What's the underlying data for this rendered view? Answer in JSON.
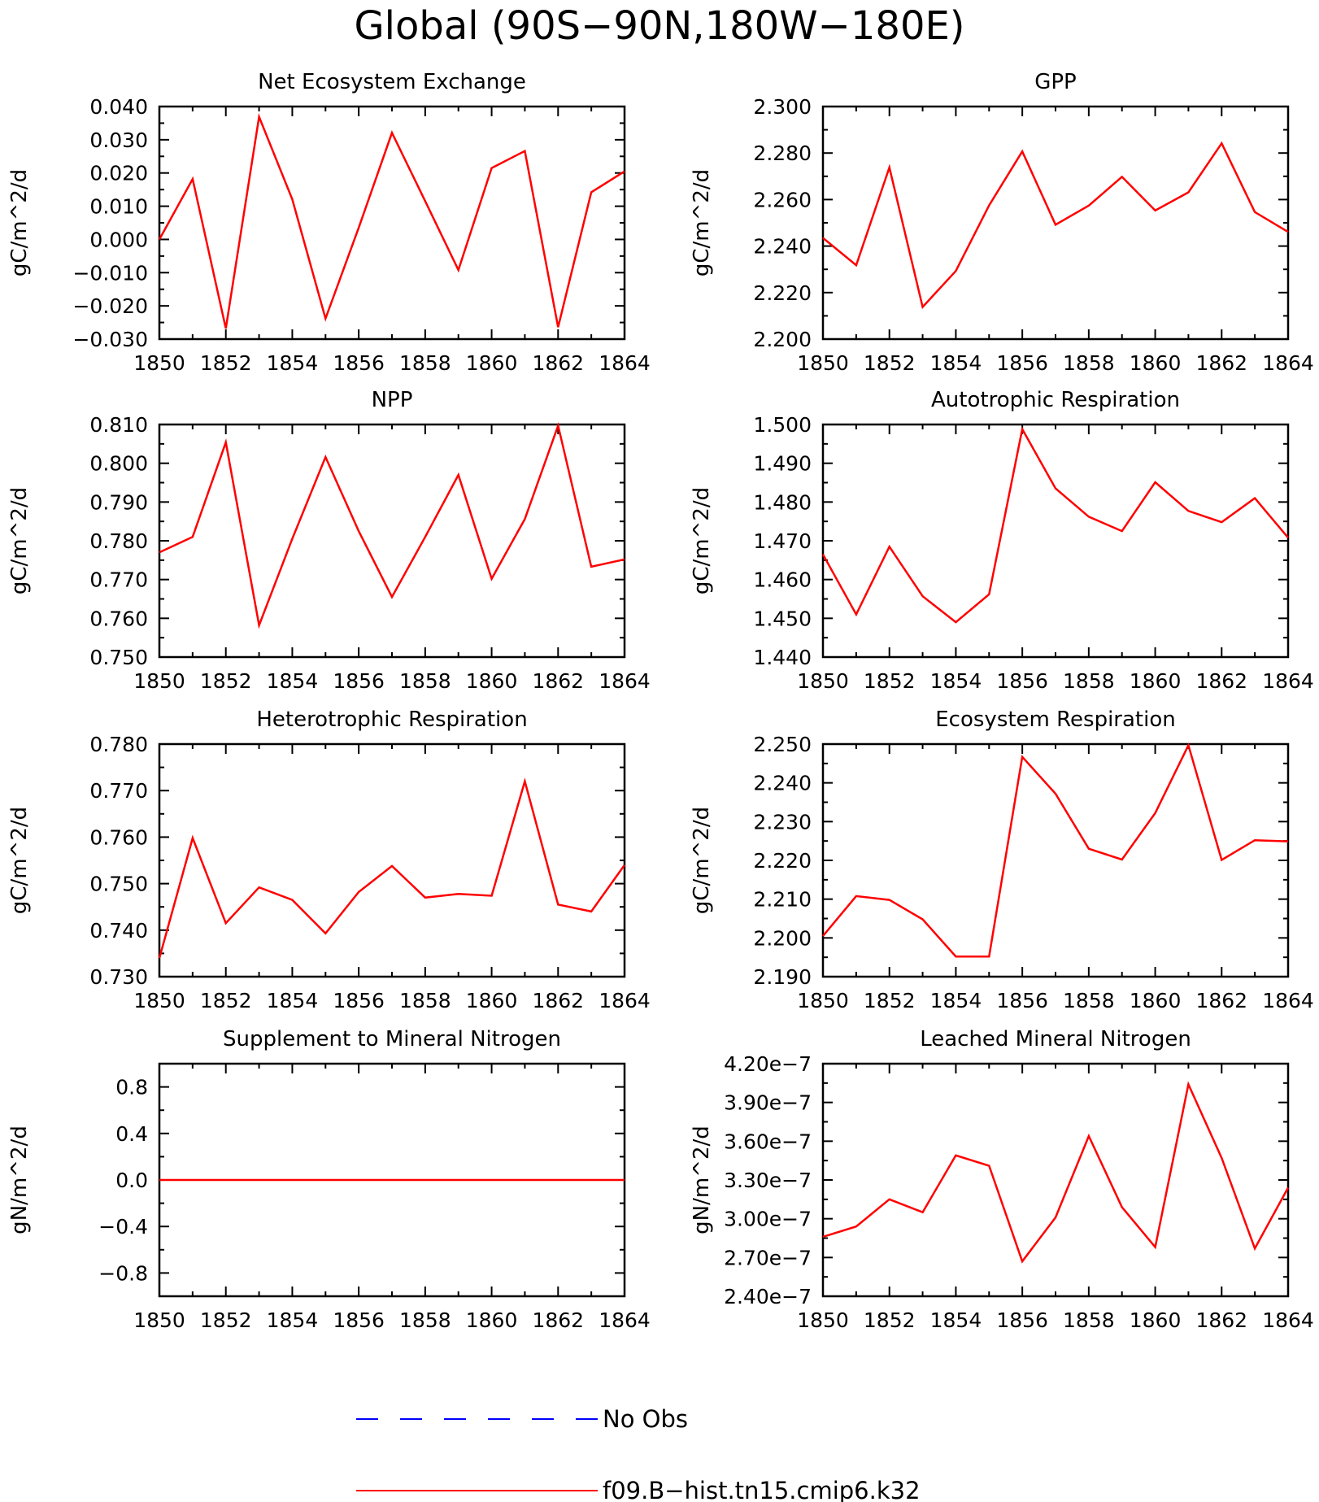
{
  "figure_title": "Global (90S−90N,180W−180E)",
  "legend": [
    {
      "label": "No Obs",
      "color": "#0000ff",
      "dash": true
    },
    {
      "label": "f09.B−hist.tn15.cmip6.k32",
      "color": "#ff0000",
      "dash": false
    }
  ],
  "chart_data": [
    {
      "type": "line",
      "title": "Net Ecosystem Exchange",
      "ylabel": "gC/m^2/d",
      "xlim": [
        1850,
        1864
      ],
      "ylim": [
        -0.03,
        0.04
      ],
      "xticks": [
        "1850",
        "1852",
        "1854",
        "1856",
        "1858",
        "1860",
        "1862",
        "1864"
      ],
      "yticks": [
        {
          "v": -0.03,
          "t": "−0.030"
        },
        {
          "v": -0.02,
          "t": "−0.020"
        },
        {
          "v": -0.01,
          "t": "−0.010"
        },
        {
          "v": 0,
          "t": "0.000"
        },
        {
          "v": 0.01,
          "t": "0.010"
        },
        {
          "v": 0.02,
          "t": "0.020"
        },
        {
          "v": 0.03,
          "t": "0.030"
        },
        {
          "v": 0.04,
          "t": "0.040"
        }
      ],
      "x": [
        1850,
        1851,
        1852,
        1853,
        1854,
        1855,
        1856,
        1857,
        1858,
        1859,
        1860,
        1861,
        1862,
        1863,
        1864
      ],
      "series": [
        {
          "name": "f09.B−hist.tn15.cmip6.k32",
          "color": "#ff0000",
          "values": [
            0.0,
            0.0182,
            -0.0268,
            0.0369,
            0.0121,
            -0.0238,
            0.0035,
            0.0321,
            0.0115,
            -0.0092,
            0.0215,
            0.0266,
            -0.0264,
            0.0142,
            0.0205
          ]
        }
      ]
    },
    {
      "type": "line",
      "title": "GPP",
      "ylabel": "gC/m^2/d",
      "xlim": [
        1850,
        1864
      ],
      "ylim": [
        2.2,
        2.3
      ],
      "xticks": [
        "1850",
        "1852",
        "1854",
        "1856",
        "1858",
        "1860",
        "1862",
        "1864"
      ],
      "yticks": [
        {
          "v": 2.2,
          "t": "2.200"
        },
        {
          "v": 2.22,
          "t": "2.220"
        },
        {
          "v": 2.24,
          "t": "2.240"
        },
        {
          "v": 2.26,
          "t": "2.260"
        },
        {
          "v": 2.28,
          "t": "2.280"
        },
        {
          "v": 2.3,
          "t": "2.300"
        }
      ],
      "x": [
        1850,
        1851,
        1852,
        1853,
        1854,
        1855,
        1856,
        1857,
        1858,
        1859,
        1860,
        1861,
        1862,
        1863,
        1864
      ],
      "series": [
        {
          "name": "f09.B−hist.tn15.cmip6.k32",
          "color": "#ff0000",
          "values": [
            2.2435,
            2.2318,
            2.2738,
            2.2138,
            2.2293,
            2.2575,
            2.2807,
            2.2492,
            2.2574,
            2.2698,
            2.2553,
            2.2631,
            2.2842,
            2.2546,
            2.2461
          ]
        }
      ]
    },
    {
      "type": "line",
      "title": "NPP",
      "ylabel": "gC/m^2/d",
      "xlim": [
        1850,
        1864
      ],
      "ylim": [
        0.75,
        0.81
      ],
      "xticks": [
        "1850",
        "1852",
        "1854",
        "1856",
        "1858",
        "1860",
        "1862",
        "1864"
      ],
      "yticks": [
        {
          "v": 0.75,
          "t": "0.750"
        },
        {
          "v": 0.76,
          "t": "0.760"
        },
        {
          "v": 0.77,
          "t": "0.770"
        },
        {
          "v": 0.78,
          "t": "0.780"
        },
        {
          "v": 0.79,
          "t": "0.790"
        },
        {
          "v": 0.8,
          "t": "0.800"
        },
        {
          "v": 0.81,
          "t": "0.810"
        }
      ],
      "x": [
        1850,
        1851,
        1852,
        1853,
        1854,
        1855,
        1856,
        1857,
        1858,
        1859,
        1860,
        1861,
        1862,
        1863,
        1864
      ],
      "series": [
        {
          "name": "f09.B−hist.tn15.cmip6.k32",
          "color": "#ff0000",
          "values": [
            0.777,
            0.781,
            0.8054,
            0.7582,
            0.7805,
            0.8016,
            0.7825,
            0.7655,
            0.781,
            0.797,
            0.7702,
            0.7856,
            0.8097,
            0.7733,
            0.7752
          ]
        }
      ]
    },
    {
      "type": "line",
      "title": "Autotrophic Respiration",
      "ylabel": "gC/m^2/d",
      "xlim": [
        1850,
        1864
      ],
      "ylim": [
        1.44,
        1.5
      ],
      "xticks": [
        "1850",
        "1852",
        "1854",
        "1856",
        "1858",
        "1860",
        "1862",
        "1864"
      ],
      "yticks": [
        {
          "v": 1.44,
          "t": "1.440"
        },
        {
          "v": 1.45,
          "t": "1.450"
        },
        {
          "v": 1.46,
          "t": "1.460"
        },
        {
          "v": 1.47,
          "t": "1.470"
        },
        {
          "v": 1.48,
          "t": "1.480"
        },
        {
          "v": 1.49,
          "t": "1.490"
        },
        {
          "v": 1.5,
          "t": "1.500"
        }
      ],
      "x": [
        1850,
        1851,
        1852,
        1853,
        1854,
        1855,
        1856,
        1857,
        1858,
        1859,
        1860,
        1861,
        1862,
        1863,
        1864
      ],
      "series": [
        {
          "name": "f09.B−hist.tn15.cmip6.k32",
          "color": "#ff0000",
          "values": [
            1.4665,
            1.451,
            1.4685,
            1.4557,
            1.449,
            1.4562,
            1.4988,
            1.4835,
            1.4762,
            1.4725,
            1.4851,
            1.4777,
            1.4748,
            1.481,
            1.4708
          ]
        }
      ]
    },
    {
      "type": "line",
      "title": "Heterotrophic Respiration",
      "ylabel": "gC/m^2/d",
      "xlim": [
        1850,
        1864
      ],
      "ylim": [
        0.73,
        0.78
      ],
      "xticks": [
        "1850",
        "1852",
        "1854",
        "1856",
        "1858",
        "1860",
        "1862",
        "1864"
      ],
      "yticks": [
        {
          "v": 0.73,
          "t": "0.730"
        },
        {
          "v": 0.74,
          "t": "0.740"
        },
        {
          "v": 0.75,
          "t": "0.750"
        },
        {
          "v": 0.76,
          "t": "0.760"
        },
        {
          "v": 0.77,
          "t": "0.770"
        },
        {
          "v": 0.78,
          "t": "0.780"
        }
      ],
      "x": [
        1850,
        1851,
        1852,
        1853,
        1854,
        1855,
        1856,
        1857,
        1858,
        1859,
        1860,
        1861,
        1862,
        1863,
        1864
      ],
      "series": [
        {
          "name": "f09.B−hist.tn15.cmip6.k32",
          "color": "#ff0000",
          "values": [
            0.734,
            0.7598,
            0.7415,
            0.7492,
            0.7465,
            0.7393,
            0.7482,
            0.7538,
            0.747,
            0.7478,
            0.7474,
            0.772,
            0.7455,
            0.744,
            0.754
          ]
        }
      ]
    },
    {
      "type": "line",
      "title": "Ecosystem Respiration",
      "ylabel": "gC/m^2/d",
      "xlim": [
        1850,
        1864
      ],
      "ylim": [
        2.19,
        2.25
      ],
      "xticks": [
        "1850",
        "1852",
        "1854",
        "1856",
        "1858",
        "1860",
        "1862",
        "1864"
      ],
      "yticks": [
        {
          "v": 2.19,
          "t": "2.190"
        },
        {
          "v": 2.2,
          "t": "2.200"
        },
        {
          "v": 2.21,
          "t": "2.210"
        },
        {
          "v": 2.22,
          "t": "2.220"
        },
        {
          "v": 2.23,
          "t": "2.230"
        },
        {
          "v": 2.24,
          "t": "2.240"
        },
        {
          "v": 2.25,
          "t": "2.250"
        }
      ],
      "x": [
        1850,
        1851,
        1852,
        1853,
        1854,
        1855,
        1856,
        1857,
        1858,
        1859,
        1860,
        1861,
        1862,
        1863,
        1864
      ],
      "series": [
        {
          "name": "f09.B−hist.tn15.cmip6.k32",
          "color": "#ff0000",
          "values": [
            2.2005,
            2.2108,
            2.2098,
            2.2048,
            2.1952,
            2.1952,
            2.2467,
            2.2372,
            2.223,
            2.2202,
            2.2322,
            2.2497,
            2.2201,
            2.2252,
            2.2249
          ]
        }
      ]
    },
    {
      "type": "line",
      "title": "Supplement to Mineral Nitrogen",
      "ylabel": "gN/m^2/d",
      "xlim": [
        1850,
        1864
      ],
      "ylim": [
        -1.0,
        1.0
      ],
      "xticks": [
        "1850",
        "1852",
        "1854",
        "1856",
        "1858",
        "1860",
        "1862",
        "1864"
      ],
      "yticks": [
        {
          "v": -0.8,
          "t": "−0.8"
        },
        {
          "v": -0.4,
          "t": "−0.4"
        },
        {
          "v": 0,
          "t": "0.0"
        },
        {
          "v": 0.4,
          "t": "0.4"
        },
        {
          "v": 0.8,
          "t": "0.8"
        }
      ],
      "x": [
        1850,
        1851,
        1852,
        1853,
        1854,
        1855,
        1856,
        1857,
        1858,
        1859,
        1860,
        1861,
        1862,
        1863,
        1864
      ],
      "series": [
        {
          "name": "f09.B−hist.tn15.cmip6.k32",
          "color": "#ff0000",
          "values": [
            0,
            0,
            0,
            0,
            0,
            0,
            0,
            0,
            0,
            0,
            0,
            0,
            0,
            0,
            0
          ]
        }
      ]
    },
    {
      "type": "line",
      "title": "Leached Mineral Nitrogen",
      "ylabel": "gN/m^2/d",
      "xlim": [
        1850,
        1864
      ],
      "ylim": [
        2.4e-07,
        4.2e-07
      ],
      "xticks": [
        "1850",
        "1852",
        "1854",
        "1856",
        "1858",
        "1860",
        "1862",
        "1864"
      ],
      "yticks": [
        {
          "v": 2.4e-07,
          "t": "2.40e−7"
        },
        {
          "v": 2.7e-07,
          "t": "2.70e−7"
        },
        {
          "v": 3e-07,
          "t": "3.00e−7"
        },
        {
          "v": 3.3e-07,
          "t": "3.30e−7"
        },
        {
          "v": 3.6e-07,
          "t": "3.60e−7"
        },
        {
          "v": 3.9e-07,
          "t": "3.90e−7"
        },
        {
          "v": 4.2e-07,
          "t": "4.20e−7"
        }
      ],
      "x": [
        1850,
        1851,
        1852,
        1853,
        1854,
        1855,
        1856,
        1857,
        1858,
        1859,
        1860,
        1861,
        1862,
        1863,
        1864
      ],
      "series": [
        {
          "name": "f09.B−hist.tn15.cmip6.k32",
          "color": "#ff0000",
          "values": [
            2.86e-07,
            2.94e-07,
            3.15e-07,
            3.05e-07,
            3.49e-07,
            3.41e-07,
            2.67e-07,
            3.01e-07,
            3.64e-07,
            3.09e-07,
            2.78e-07,
            4.04e-07,
            3.47e-07,
            2.77e-07,
            3.24e-07
          ]
        }
      ]
    }
  ]
}
